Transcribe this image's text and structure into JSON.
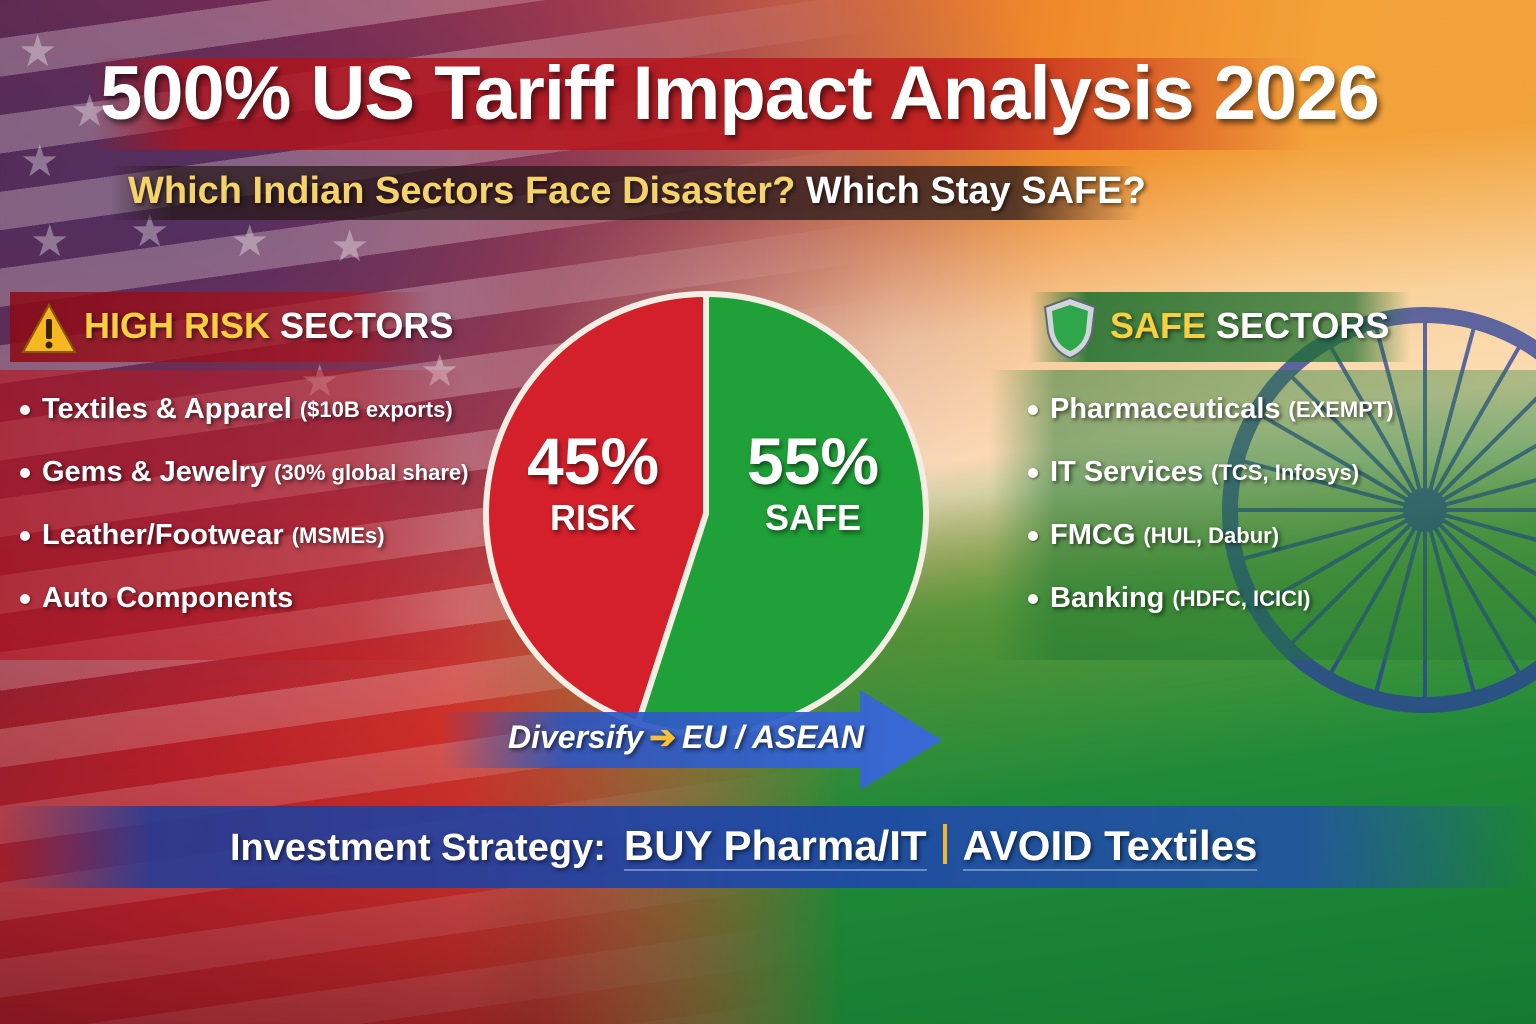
{
  "header": {
    "title": "500% US Tariff Impact Analysis 2026",
    "subtitle_question": "Which Indian Sectors Face Disaster?",
    "subtitle_safe": "Which Stay SAFE?"
  },
  "high_risk": {
    "heading_highlight": "HIGH RISK",
    "heading_rest": "SECTORS",
    "icon": "warning-triangle-icon",
    "items": [
      {
        "name": "Textiles & Apparel",
        "note": "($10B exports)"
      },
      {
        "name": "Gems & Jewelry",
        "note": "(30% global share)"
      },
      {
        "name": "Leather/Footwear",
        "note": "(MSMEs)"
      },
      {
        "name": "Auto Components",
        "note": ""
      }
    ]
  },
  "safe": {
    "heading_highlight": "SAFE",
    "heading_rest": "SECTORS",
    "icon": "shield-icon",
    "items": [
      {
        "name": "Pharmaceuticals",
        "note": "(EXEMPT)"
      },
      {
        "name": "IT Services",
        "note": "(TCS, Infosys)"
      },
      {
        "name": "FMCG",
        "note": "(HUL, Dabur)"
      },
      {
        "name": "Banking",
        "note": "(HDFC, ICICI)"
      }
    ]
  },
  "chart_data": {
    "type": "pie",
    "slices": [
      {
        "label": "RISK",
        "value": 45,
        "pct_text": "45%",
        "color": "#d4202a"
      },
      {
        "label": "SAFE",
        "value": 55,
        "pct_text": "55%",
        "color": "#20a038"
      }
    ]
  },
  "arrow": {
    "text_left": "Diversify",
    "arrow_glyph": "➔",
    "text_right": "EU / ASEAN",
    "color": "#2a55c0"
  },
  "strategy": {
    "label": "Investment Strategy:",
    "buy": "BUY Pharma/IT",
    "avoid": "AVOID Textiles"
  },
  "colors": {
    "risk_red": "#d4202a",
    "safe_green": "#20a038",
    "highlight_yellow": "#f7d040",
    "strategy_blue": "#2a4fae"
  }
}
